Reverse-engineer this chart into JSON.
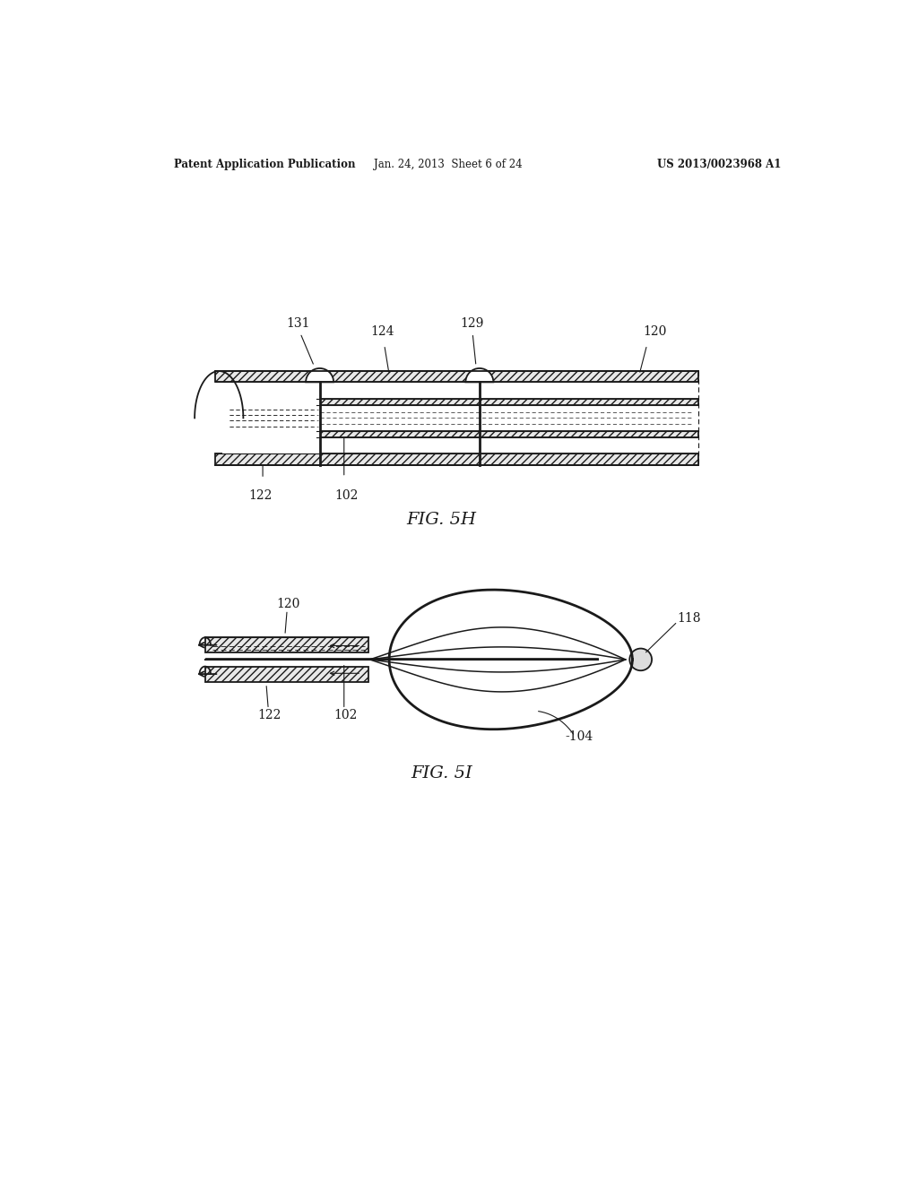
{
  "bg_color": "#ffffff",
  "line_color": "#1a1a1a",
  "fig_width": 10.24,
  "fig_height": 13.2,
  "header_left": "Patent Application Publication",
  "header_mid": "Jan. 24, 2013  Sheet 6 of 24",
  "header_right": "US 2013/0023968 A1",
  "fig5h_label": "FIG. 5H",
  "fig5i_label": "FIG. 5I",
  "label_131": "131",
  "label_124": "124",
  "label_129": "129",
  "label_120_top": "120",
  "label_122_top": "122",
  "label_102_top": "102",
  "label_120_bot": "120",
  "label_122_bot": "122",
  "label_102_bot": "102",
  "label_118": "118",
  "label_104": "-104"
}
